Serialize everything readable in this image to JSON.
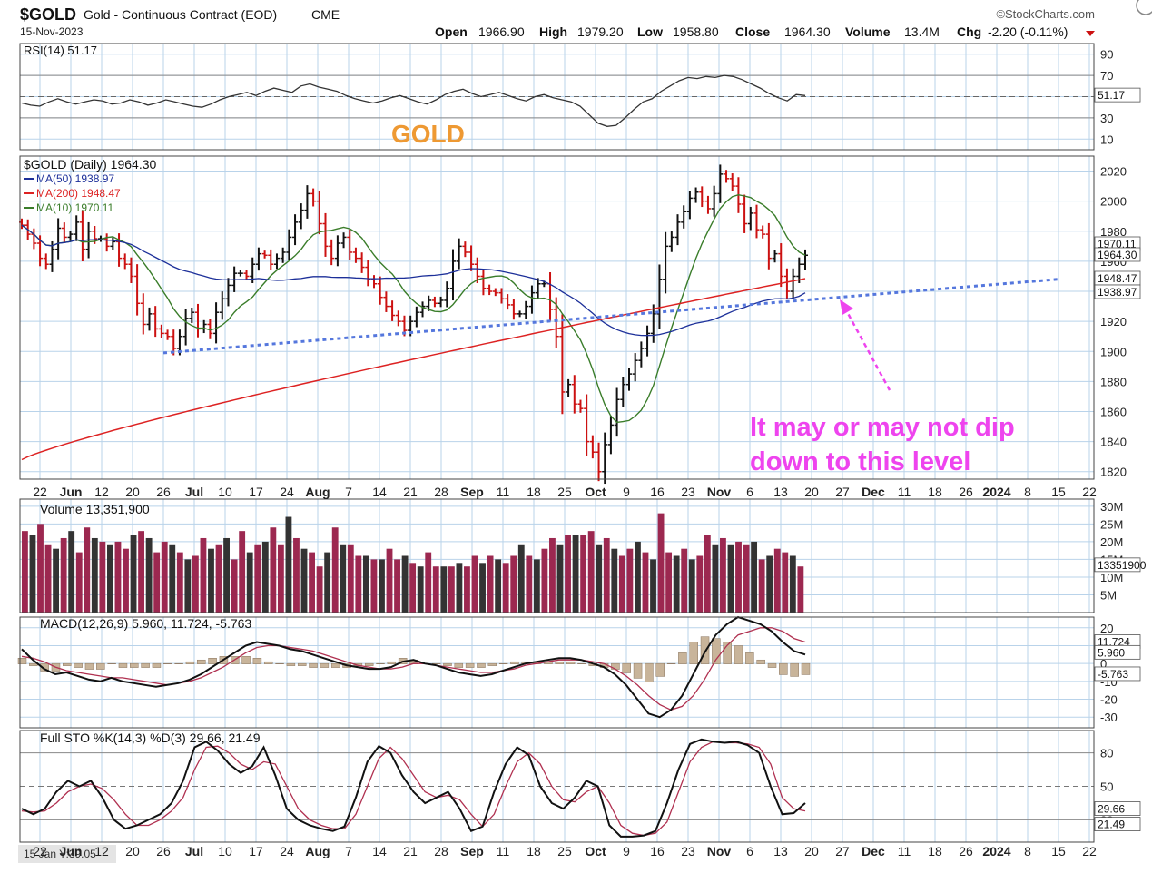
{
  "header": {
    "symbol": "$GOLD",
    "name": "Gold - Continuous Contract (EOD)",
    "exchange": "CME",
    "date": "15-Nov-2023",
    "brand": "©StockCharts.com",
    "open_label": "Open",
    "open": "1966.90",
    "high_label": "High",
    "high": "1979.20",
    "low_label": "Low",
    "low": "1958.80",
    "close_label": "Close",
    "close": "1964.30",
    "volume_label": "Volume",
    "volume": "13.4M",
    "chg_label": "Chg",
    "chg": "-2.20 (-0.11%)"
  },
  "annotations": {
    "gold_title": "GOLD",
    "note_line1": "It may or may not dip",
    "note_line2": "down to this level"
  },
  "footer": {
    "cursor_readout": "15 Jan Y:39.05"
  },
  "colors": {
    "up_bar": "#111111",
    "down_bar": "#cc1111",
    "ma50": "#1c2f99",
    "ma200": "#dd2222",
    "ma10": "#3a7d2a",
    "trendline": "#5577dd",
    "annotation": "#ee44ee",
    "gold_title": "#ee9933",
    "vol_up": "#333333",
    "vol_down": "#9c2850",
    "hist": "#c8b49a",
    "grid": "#b9d3ea"
  },
  "chart_data": [
    {
      "type": "line",
      "panel": "RSI",
      "legend": "RSI(14) 51.17",
      "ylim": [
        0,
        100
      ],
      "yticks": [
        90,
        70,
        50,
        30,
        10
      ],
      "value_tag": "51.17",
      "values": [
        44,
        42,
        41,
        45,
        48,
        45,
        43,
        45,
        47,
        46,
        43,
        44,
        47,
        45,
        42,
        44,
        47,
        45,
        43,
        41,
        40,
        43,
        47,
        50,
        52,
        54,
        51,
        55,
        58,
        56,
        54,
        60,
        62,
        59,
        57,
        55,
        51,
        48,
        46,
        44,
        46,
        49,
        51,
        48,
        45,
        43,
        47,
        52,
        55,
        57,
        53,
        50,
        52,
        54,
        51,
        48,
        46,
        50,
        52,
        49,
        47,
        45,
        41,
        33,
        25,
        22,
        23,
        30,
        38,
        45,
        48,
        55,
        60,
        65,
        68,
        67,
        69,
        68,
        70,
        69,
        66,
        62,
        58,
        53,
        49,
        46,
        52,
        51
      ]
    },
    {
      "type": "candlestick",
      "panel": "price",
      "legend": "$GOLD (Daily) 1964.30",
      "ylim": [
        1815,
        2030
      ],
      "yticks": [
        2020,
        2000,
        1980,
        1960,
        1940,
        1920,
        1900,
        1880,
        1860,
        1840,
        1820
      ],
      "x_tick_labels": [
        "22",
        "Jun",
        "12",
        "20",
        "26",
        "Jul",
        "10",
        "17",
        "24",
        "Aug",
        "7",
        "14",
        "21",
        "28",
        "Sep",
        "11",
        "18",
        "25",
        "Oct",
        "9",
        "16",
        "23",
        "Nov",
        "6",
        "13",
        "20",
        "27",
        "Dec",
        "11",
        "18",
        "26",
        "2024",
        "8",
        "15",
        "22"
      ],
      "closes": [
        1984,
        1978,
        1972,
        1962,
        1958,
        1968,
        1982,
        1976,
        1978,
        1986,
        1968,
        1980,
        1975,
        1975,
        1970,
        1973,
        1962,
        1958,
        1950,
        1932,
        1918,
        1925,
        1915,
        1912,
        1910,
        1902,
        1910,
        1922,
        1926,
        1915,
        1918,
        1912,
        1926,
        1935,
        1944,
        1952,
        1952,
        1950,
        1958,
        1965,
        1964,
        1958,
        1962,
        1966,
        1976,
        1986,
        1994,
        2005,
        2000,
        1985,
        1970,
        1962,
        1972,
        1976,
        1966,
        1962,
        1956,
        1948,
        1945,
        1936,
        1930,
        1924,
        1920,
        1914,
        1920,
        1926,
        1930,
        1934,
        1932,
        1934,
        1942,
        1960,
        1970,
        1966,
        1958,
        1950,
        1942,
        1940,
        1939,
        1935,
        1931,
        1925,
        1925,
        1930,
        1939,
        1945,
        1945,
        1928,
        1910,
        1873,
        1878,
        1865,
        1862,
        1840,
        1833,
        1820,
        1838,
        1851,
        1868,
        1878,
        1885,
        1894,
        1902,
        1912,
        1925,
        1948,
        1970,
        1976,
        1986,
        1993,
        2002,
        2006,
        2000,
        1995,
        2005,
        2018,
        2015,
        2010,
        1998,
        1985,
        1992,
        1981,
        1978,
        1962,
        1965,
        1950,
        1940,
        1950,
        1958,
        1964
      ],
      "series": [
        {
          "name": "MA(50) 1938.97",
          "last": 1938.97
        },
        {
          "name": "MA(200) 1948.47",
          "last": 1948.47
        },
        {
          "name": "MA(10) 1970.11",
          "last": 1970.11
        }
      ],
      "value_tags": [
        "1970.11",
        "1964.30",
        "1948.47",
        "1938.97"
      ]
    },
    {
      "type": "bar",
      "panel": "volume",
      "legend": "Volume 13,351,900",
      "ylim": [
        0,
        30
      ],
      "yticks": [
        "30M",
        "25M",
        "20M",
        "15M",
        "10M",
        "5M"
      ],
      "value_tag": "13351900",
      "values": [
        23,
        22,
        25,
        19,
        18,
        21,
        23,
        17,
        24,
        21,
        20,
        19,
        20,
        18,
        22,
        23,
        21,
        17,
        20,
        19,
        17,
        15,
        16,
        21,
        18,
        19,
        21,
        15,
        23,
        17,
        19,
        20,
        24,
        19,
        27,
        21,
        18,
        17,
        13,
        17,
        24,
        19,
        19,
        16,
        16,
        15,
        15,
        18,
        15,
        16,
        14,
        13,
        17,
        13,
        13,
        13,
        14,
        13,
        16,
        14,
        16,
        15,
        14,
        16,
        19,
        16,
        15,
        18,
        21,
        19,
        22,
        22,
        22,
        23,
        19,
        21,
        18,
        16,
        18,
        20,
        17,
        15,
        28,
        17,
        16,
        18,
        15,
        16,
        22,
        19,
        21,
        19,
        20,
        19,
        20,
        15,
        16,
        18,
        17,
        16,
        13
      ]
    },
    {
      "type": "line",
      "panel": "MACD",
      "legend": "MACD(12,26,9) 5.960, 11.724, -5.763",
      "yticks": [
        20,
        10,
        0,
        -10,
        -20,
        -30
      ],
      "value_tags": [
        "11.724",
        "5.960",
        "-5.763"
      ],
      "series": [
        {
          "name": "MACD",
          "values": [
            8,
            2,
            -3,
            -6,
            -5,
            -7,
            -9,
            -10,
            -8,
            -10,
            -11,
            -12,
            -13,
            -12,
            -11,
            -9,
            -6,
            -2,
            2,
            6,
            10,
            12,
            11,
            10,
            8,
            7,
            5,
            3,
            1,
            -1,
            -2,
            -3,
            -3,
            -2,
            1,
            2,
            0,
            -1,
            -3,
            -5,
            -6,
            -7,
            -6,
            -4,
            -2,
            0,
            1,
            2,
            3,
            3,
            2,
            0,
            -2,
            -6,
            -12,
            -20,
            -28,
            -30,
            -26,
            -18,
            -6,
            6,
            16,
            22,
            26,
            24,
            22,
            18,
            12,
            7,
            5
          ]
        },
        {
          "name": "Signal",
          "values": [
            4,
            3,
            1,
            -2,
            -4,
            -5,
            -6,
            -7,
            -8,
            -8,
            -9,
            -10,
            -11,
            -12,
            -11,
            -10,
            -8,
            -5,
            -2,
            2,
            6,
            9,
            10,
            10,
            9,
            8,
            7,
            5,
            3,
            1,
            -1,
            -2,
            -3,
            -3,
            -2,
            0,
            0,
            -1,
            -2,
            -3,
            -4,
            -5,
            -5,
            -4,
            -3,
            -1,
            0,
            1,
            2,
            2,
            2,
            1,
            0,
            -3,
            -7,
            -12,
            -18,
            -23,
            -26,
            -24,
            -18,
            -9,
            2,
            10,
            16,
            18,
            20,
            20,
            18,
            14,
            12
          ]
        },
        {
          "name": "Histogram",
          "values": [
            3,
            -1,
            -4,
            -4,
            -1,
            -2,
            -3,
            -3,
            0,
            -2,
            -2,
            -2,
            -2,
            0,
            0,
            1,
            2,
            3,
            4,
            4,
            4,
            3,
            1,
            0,
            -1,
            -1,
            -2,
            -2,
            -2,
            -2,
            -1,
            -1,
            0,
            1,
            3,
            2,
            0,
            0,
            -1,
            -2,
            -2,
            -2,
            -1,
            0,
            1,
            1,
            1,
            1,
            1,
            1,
            0,
            -1,
            -2,
            -3,
            -5,
            -8,
            -10,
            -7,
            0,
            6,
            12,
            15,
            14,
            12,
            10,
            6,
            2,
            -2,
            -6,
            -7,
            -6
          ]
        }
      ]
    },
    {
      "type": "line",
      "panel": "stochastic",
      "legend": "Full STO %K(14,3) %D(3) 29.66, 21.49",
      "ylim": [
        0,
        100
      ],
      "yticks": [
        80,
        50,
        20
      ],
      "value_tags": [
        "29.66",
        "21.49"
      ],
      "series": [
        {
          "name": "%K",
          "values": [
            30,
            25,
            30,
            45,
            55,
            50,
            55,
            40,
            20,
            12,
            15,
            20,
            25,
            35,
            55,
            85,
            90,
            82,
            70,
            62,
            68,
            85,
            60,
            30,
            20,
            15,
            12,
            10,
            14,
            40,
            72,
            86,
            80,
            60,
            45,
            35,
            40,
            45,
            30,
            10,
            14,
            45,
            70,
            85,
            78,
            50,
            35,
            30,
            40,
            55,
            50,
            15,
            5,
            5,
            6,
            10,
            35,
            65,
            88,
            92,
            90,
            89,
            90,
            87,
            80,
            50,
            25,
            26,
            35
          ]
        },
        {
          "name": "%D",
          "values": [
            28,
            27,
            28,
            35,
            45,
            50,
            52,
            48,
            38,
            25,
            15,
            15,
            20,
            28,
            40,
            65,
            85,
            86,
            80,
            70,
            65,
            72,
            70,
            50,
            30,
            20,
            15,
            12,
            12,
            25,
            50,
            75,
            85,
            75,
            60,
            45,
            40,
            42,
            38,
            25,
            14,
            25,
            50,
            72,
            80,
            70,
            50,
            38,
            36,
            45,
            50,
            35,
            15,
            8,
            6,
            8,
            18,
            45,
            72,
            85,
            90,
            89,
            89,
            88,
            85,
            70,
            40,
            30,
            28
          ]
        }
      ]
    }
  ]
}
